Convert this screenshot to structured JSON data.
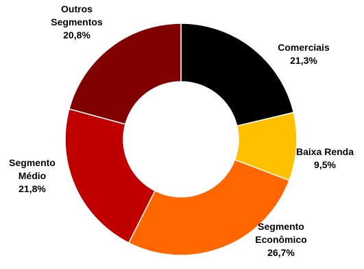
{
  "chart_data": {
    "type": "pie",
    "variant": "donut",
    "title": "",
    "series": [
      {
        "values": [
          {
            "label": "Comerciais",
            "value": 21.3,
            "display": "21,3%",
            "color": "#000000"
          },
          {
            "label": "Baixa Renda",
            "value": 9.5,
            "display": "9,5%",
            "color": "#FFC000"
          },
          {
            "label": "Segmento Econômico",
            "value": 26.7,
            "display": "26,7%",
            "color": "#FF6600"
          },
          {
            "label": "Segmento Médio",
            "value": 21.8,
            "display": "21,8%",
            "color": "#C00000"
          },
          {
            "label": "Outros Segmentos",
            "value": 20.8,
            "display": "20,8%",
            "color": "#800000"
          }
        ]
      }
    ],
    "label_lines": [
      [
        "Comerciais",
        "21,3%"
      ],
      [
        "Baixa Renda",
        "9,5%"
      ],
      [
        "Segmento",
        "Econômico",
        "26,7%"
      ],
      [
        "Segmento",
        "Médio",
        "21,8%"
      ],
      [
        "Outros",
        "Segmentos",
        "20,8%"
      ]
    ],
    "legend": "none",
    "grid": false
  }
}
